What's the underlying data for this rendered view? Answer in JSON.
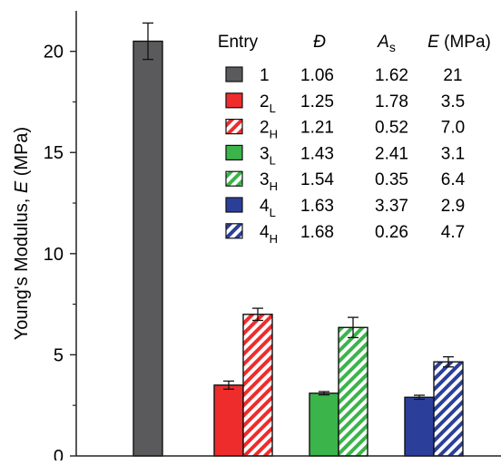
{
  "chart_data": {
    "type": "bar",
    "title": "",
    "xlabel": "",
    "ylabel_prefix": "Young's Modulus, ",
    "ylabel_var": "E",
    "ylabel_suffix": " (MPa)",
    "ylim": [
      0,
      22
    ],
    "yticks": [
      "0",
      "5",
      "10",
      "15",
      "20"
    ],
    "ytick_values": [
      0,
      5,
      10,
      15,
      20
    ],
    "grid": false,
    "bars": [
      {
        "entry": "1",
        "sub": "",
        "group": 1,
        "pattern": "solid",
        "color": "#5a5a5c",
        "value": 20.5,
        "err": 0.9
      },
      {
        "entry": "2",
        "sub": "L",
        "group": 2,
        "pattern": "solid",
        "color": "#ee2c2c",
        "value": 3.5,
        "err": 0.2
      },
      {
        "entry": "2",
        "sub": "H",
        "group": 2,
        "pattern": "hatched",
        "color": "#ee2c2c",
        "value": 7.0,
        "err": 0.3
      },
      {
        "entry": "3",
        "sub": "L",
        "group": 3,
        "pattern": "solid",
        "color": "#3bb44a",
        "value": 3.1,
        "err": 0.08
      },
      {
        "entry": "3",
        "sub": "H",
        "group": 3,
        "pattern": "hatched",
        "color": "#3bb44a",
        "value": 6.35,
        "err": 0.5
      },
      {
        "entry": "4",
        "sub": "L",
        "group": 4,
        "pattern": "solid",
        "color": "#2b3f9a",
        "value": 2.9,
        "err": 0.1
      },
      {
        "entry": "4",
        "sub": "H",
        "group": 4,
        "pattern": "hatched",
        "color": "#2b3f9a",
        "value": 4.65,
        "err": 0.25
      }
    ],
    "legend": {
      "placement": "top-right",
      "headers": {
        "entry": "Entry",
        "dispersity": "Đ",
        "as_main": "A",
        "as_sub": "s",
        "e_var": "E",
        "e_unit": " (MPa)"
      },
      "rows": [
        {
          "label": "1",
          "sub": "",
          "pattern": "solid",
          "color": "#5a5a5c",
          "dispersity": "1.06",
          "as": "1.62",
          "e": "21"
        },
        {
          "label": "2",
          "sub": "L",
          "pattern": "solid",
          "color": "#ee2c2c",
          "dispersity": "1.25",
          "as": "1.78",
          "e": "3.5"
        },
        {
          "label": "2",
          "sub": "H",
          "pattern": "hatched",
          "color": "#ee2c2c",
          "dispersity": "1.21",
          "as": "0.52",
          "e": "7.0"
        },
        {
          "label": "3",
          "sub": "L",
          "pattern": "solid",
          "color": "#3bb44a",
          "dispersity": "1.43",
          "as": "2.41",
          "e": "3.1"
        },
        {
          "label": "3",
          "sub": "H",
          "pattern": "hatched",
          "color": "#3bb44a",
          "dispersity": "1.54",
          "as": "0.35",
          "e": "6.4"
        },
        {
          "label": "4",
          "sub": "L",
          "pattern": "solid",
          "color": "#2b3f9a",
          "dispersity": "1.63",
          "as": "3.37",
          "e": "2.9"
        },
        {
          "label": "4",
          "sub": "H",
          "pattern": "hatched",
          "color": "#2b3f9a",
          "dispersity": "1.68",
          "as": "0.26",
          "e": "4.7"
        }
      ]
    }
  }
}
